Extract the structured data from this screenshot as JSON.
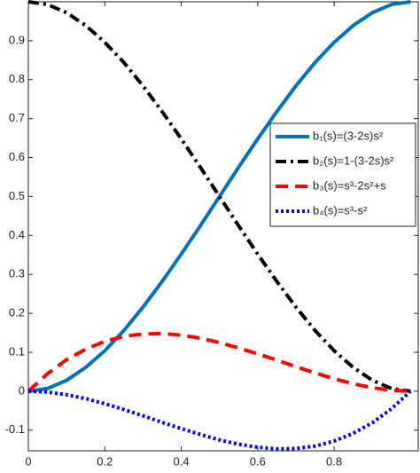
{
  "chart_data": {
    "type": "line",
    "x": [
      0,
      0.05,
      0.1,
      0.15,
      0.2,
      0.25,
      0.3,
      0.35,
      0.4,
      0.45,
      0.5,
      0.55,
      0.6,
      0.65,
      0.7,
      0.75,
      0.8,
      0.85,
      0.9,
      0.95,
      1
    ],
    "series": [
      {
        "name": "b₁(s)=(3-2s)s²",
        "color": "#0072bd",
        "linestyle": "solid",
        "values": [
          0,
          0.007,
          0.028,
          0.061,
          0.104,
          0.156,
          0.216,
          0.282,
          0.352,
          0.425,
          0.5,
          0.575,
          0.648,
          0.718,
          0.784,
          0.844,
          0.896,
          0.939,
          0.972,
          0.993,
          1
        ]
      },
      {
        "name": "b₂(s)=1-(3-2s)s²",
        "color": "#000000",
        "linestyle": "dashdot",
        "values": [
          1,
          0.993,
          0.972,
          0.939,
          0.896,
          0.844,
          0.784,
          0.718,
          0.648,
          0.575,
          0.5,
          0.425,
          0.352,
          0.282,
          0.216,
          0.156,
          0.104,
          0.061,
          0.028,
          0.007,
          0
        ]
      },
      {
        "name": "b₃(s)=s³-2s²+s",
        "color": "#ff0000",
        "linestyle": "dashed",
        "values": [
          0,
          0.045,
          0.081,
          0.108,
          0.128,
          0.141,
          0.147,
          0.148,
          0.144,
          0.136,
          0.125,
          0.111,
          0.096,
          0.08,
          0.063,
          0.047,
          0.032,
          0.019,
          0.009,
          0.002,
          0
        ]
      },
      {
        "name": "b₄(s)=s³-s²",
        "color": "#0000ff",
        "linestyle": "dotted",
        "values": [
          0,
          -0.002,
          -0.009,
          -0.019,
          -0.032,
          -0.047,
          -0.063,
          -0.08,
          -0.096,
          -0.111,
          -0.125,
          -0.136,
          -0.144,
          -0.148,
          -0.147,
          -0.141,
          -0.128,
          -0.108,
          -0.081,
          -0.045,
          0
        ]
      }
    ],
    "xlim": [
      0,
      1.02
    ],
    "ylim": [
      -0.153,
      1.0
    ],
    "xticks": [
      0,
      0.2,
      0.4,
      0.6,
      0.8
    ],
    "yticks": [
      -0.1,
      0,
      0.1,
      0.2,
      0.3,
      0.4,
      0.5,
      0.6,
      0.7,
      0.8,
      0.9
    ],
    "legend": "east"
  }
}
